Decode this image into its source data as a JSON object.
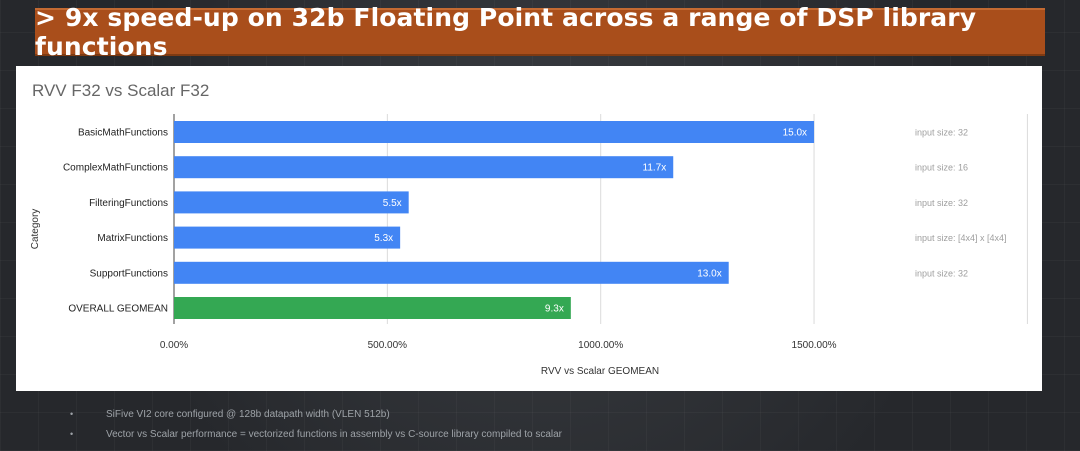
{
  "banner": {
    "title": "> 9x speed-up on 32b Floating Point across a range of DSP library functions"
  },
  "chart_data": {
    "type": "bar",
    "orientation": "horizontal",
    "title": "RVV F32 vs Scalar F32",
    "xlabel": "RVV vs Scalar GEOMEAN",
    "ylabel": "Category",
    "categories": [
      "BasicMathFunctions",
      "ComplexMathFunctions",
      "FilteringFunctions",
      "MatrixFunctions",
      "SupportFunctions",
      "OVERALL GEOMEAN"
    ],
    "values": [
      1500,
      1170,
      550,
      530,
      1300,
      930
    ],
    "data_labels": [
      "15.0x",
      "11.7x",
      "5.5x",
      "5.3x",
      "13.0x",
      "9.3x"
    ],
    "annotations": [
      "input size: 32",
      "input size: 16",
      "input size: 32",
      "input size: [4x4] x [4x4]",
      "input size: 32",
      ""
    ],
    "colors": [
      "#4285f4",
      "#4285f4",
      "#4285f4",
      "#4285f4",
      "#4285f4",
      "#34a853"
    ],
    "xticks": [
      0,
      500,
      1000,
      1500
    ],
    "xtick_labels": [
      "0.00%",
      "500.00%",
      "1000.00%",
      "1500.00%"
    ],
    "xlim": [
      0,
      2000
    ],
    "grid": true
  },
  "footnotes": [
    "SiFive VI2 core configured @ 128b datapath width (VLEN 512b)",
    "Vector vs Scalar performance = vectorized functions in assembly vs C-source library compiled to scalar"
  ]
}
